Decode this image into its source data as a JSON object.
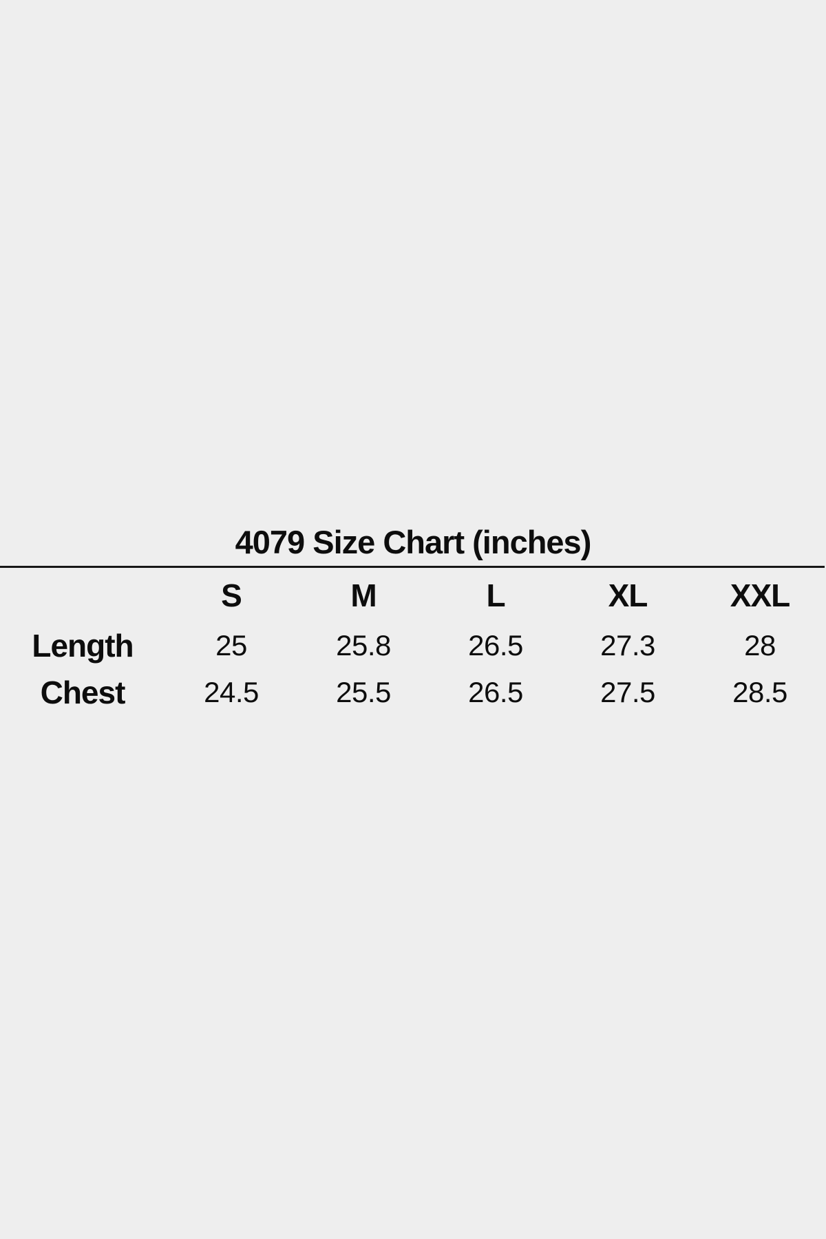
{
  "page": {
    "background_color": "#eeeeee",
    "text_color": "#0d0d0d",
    "rule_color": "#161616"
  },
  "chart_data": {
    "type": "table",
    "title": "4079 Size Chart (inches)",
    "units": "inches",
    "columns": [
      "S",
      "M",
      "L",
      "XL",
      "XXL"
    ],
    "rows": [
      {
        "label": "Length",
        "values": [
          25,
          25.8,
          26.5,
          27.3,
          28
        ]
      },
      {
        "label": "Chest",
        "values": [
          24.5,
          25.5,
          26.5,
          27.5,
          28.5
        ]
      }
    ],
    "layout": {
      "grid": "off",
      "header_style": "bold",
      "title_divider": "full-width horizontal line"
    }
  }
}
